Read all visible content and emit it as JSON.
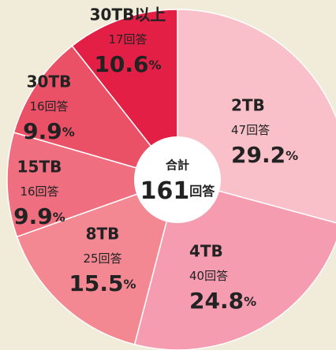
{
  "chart_data": {
    "type": "donut",
    "categories": [
      "2TB",
      "4TB",
      "8TB",
      "15TB",
      "30TB",
      "30TB以上"
    ],
    "values": [
      29.2,
      24.8,
      15.5,
      9.9,
      9.9,
      10.6
    ],
    "percent_unit": "%",
    "counts": [
      47,
      40,
      25,
      16,
      16,
      17
    ],
    "count_unit": "回答",
    "colors": [
      "#f9c0c9",
      "#f59cb1",
      "#f38892",
      "#ef6f80",
      "#ea5066",
      "#e31f45"
    ],
    "center_title": "合計",
    "total": 161,
    "total_unit": "回答"
  }
}
